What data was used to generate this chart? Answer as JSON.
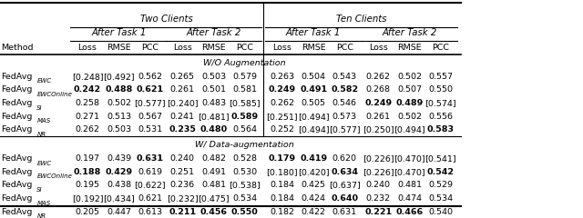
{
  "top_headers": [
    "Two Clients",
    "Ten Clients"
  ],
  "mid_headers": [
    "After Task 1",
    "After Task 2",
    "After Task 1",
    "After Task 2"
  ],
  "col_headers": [
    "Loss",
    "RMSE",
    "PCC",
    "Loss",
    "RMSE",
    "PCC",
    "Loss",
    "RMSE",
    "PCC",
    "Loss",
    "RMSE",
    "PCC"
  ],
  "row_header": "Method",
  "section1_label": "W/O Augmentation",
  "section2_label": "W/ Data-augmentation",
  "methods_sub": [
    "EWC",
    "EWCOnline",
    "SI",
    "MAS",
    "NR"
  ],
  "section1_data": [
    [
      "[0.248]",
      "[0.492]",
      "0.562",
      "0.265",
      "0.503",
      "0.579",
      "0.263",
      "0.504",
      "0.543",
      "0.262",
      "0.502",
      "0.557"
    ],
    [
      "0.242",
      "0.488",
      "0.621",
      "0.261",
      "0.501",
      "0.581",
      "0.249",
      "0.491",
      "0.582",
      "0.268",
      "0.507",
      "0.550"
    ],
    [
      "0.258",
      "0.502",
      "[0.577]",
      "[0.240]",
      "0.483",
      "[0.585]",
      "0.262",
      "0.505",
      "0.546",
      "0.249",
      "0.489",
      "[0.574]"
    ],
    [
      "0.271",
      "0.513",
      "0.567",
      "0.241",
      "[0.481]",
      "0.589",
      "[0.251]",
      "[0.494]",
      "0.573",
      "0.261",
      "0.502",
      "0.556"
    ],
    [
      "0.262",
      "0.503",
      "0.531",
      "0.235",
      "0.480",
      "0.564",
      "0.252",
      "[0.494]",
      "[0.577]",
      "[0.250]",
      "[0.494]",
      "0.583"
    ]
  ],
  "section1_bold": [
    [
      false,
      false,
      false,
      false,
      false,
      false,
      false,
      false,
      false,
      false,
      false,
      false
    ],
    [
      true,
      true,
      true,
      false,
      false,
      false,
      true,
      true,
      true,
      false,
      false,
      false
    ],
    [
      false,
      false,
      false,
      false,
      false,
      false,
      false,
      false,
      false,
      true,
      true,
      false
    ],
    [
      false,
      false,
      false,
      false,
      false,
      true,
      false,
      false,
      false,
      false,
      false,
      false
    ],
    [
      false,
      false,
      false,
      true,
      true,
      false,
      false,
      false,
      false,
      false,
      false,
      true
    ]
  ],
  "section2_data": [
    [
      "0.197",
      "0.439",
      "0.631",
      "0.240",
      "0.482",
      "0.528",
      "0.179",
      "0.419",
      "0.620",
      "[0.226]",
      "[0.470]",
      "[0.541]"
    ],
    [
      "0.188",
      "0.429",
      "0.619",
      "0.251",
      "0.491",
      "0.530",
      "[0.180]",
      "[0.420]",
      "0.634",
      "[0.226]",
      "[0.470]",
      "0.542"
    ],
    [
      "0.195",
      "0.438",
      "[0.622]",
      "0.236",
      "0.481",
      "[0.538]",
      "0.184",
      "0.425",
      "[0.637]",
      "0.240",
      "0.481",
      "0.529"
    ],
    [
      "[0.192]",
      "[0.434]",
      "0.621",
      "[0.232]",
      "[0.475]",
      "0.534",
      "0.184",
      "0.424",
      "0.640",
      "0.232",
      "0.474",
      "0.534"
    ],
    [
      "0.205",
      "0.447",
      "0.613",
      "0.211",
      "0.456",
      "0.550",
      "0.182",
      "0.422",
      "0.631",
      "0.221",
      "0.466",
      "0.540"
    ]
  ],
  "section2_bold": [
    [
      false,
      false,
      true,
      false,
      false,
      false,
      true,
      true,
      false,
      false,
      false,
      false
    ],
    [
      true,
      true,
      false,
      false,
      false,
      false,
      false,
      false,
      true,
      false,
      false,
      true
    ],
    [
      false,
      false,
      false,
      false,
      false,
      false,
      false,
      false,
      false,
      false,
      false,
      false
    ],
    [
      false,
      false,
      false,
      false,
      false,
      false,
      false,
      false,
      true,
      false,
      false,
      false
    ],
    [
      false,
      false,
      false,
      true,
      true,
      true,
      false,
      false,
      false,
      true,
      true,
      false
    ]
  ],
  "fontsize": 6.8,
  "fig_width": 6.4,
  "fig_height": 2.4
}
